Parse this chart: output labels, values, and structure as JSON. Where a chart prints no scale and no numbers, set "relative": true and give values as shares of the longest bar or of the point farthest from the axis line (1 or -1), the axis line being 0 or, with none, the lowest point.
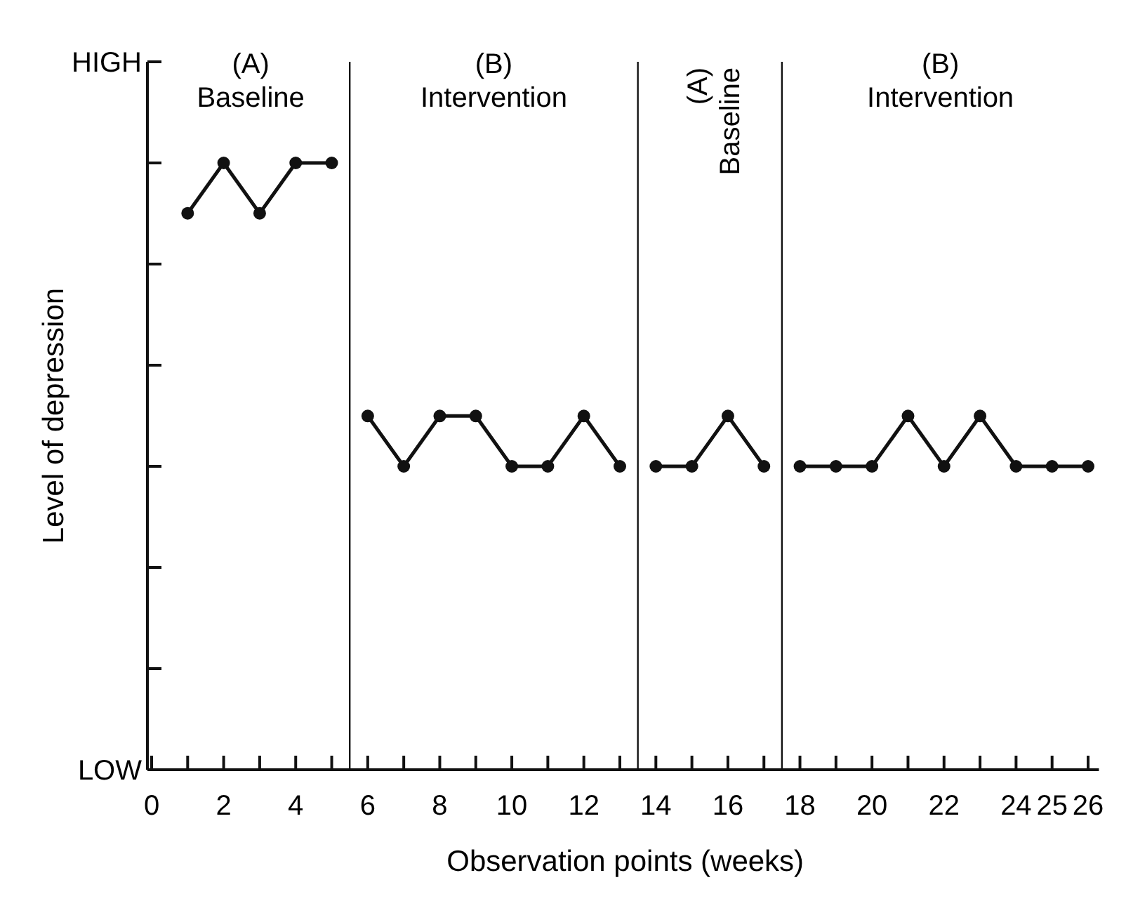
{
  "chart_data": {
    "type": "line",
    "xlabel": "Observation points (weeks)",
    "ylabel": "Level of depression",
    "relative": true,
    "xlim": [
      0,
      26.3
    ],
    "xticks": [
      0,
      {
        "value": 1,
        "label": null
      },
      2,
      {
        "value": 3,
        "label": null
      },
      4,
      {
        "value": 5,
        "label": null
      },
      6,
      {
        "value": 7,
        "label": null
      },
      8,
      {
        "value": 9,
        "label": null
      },
      10,
      {
        "value": 11,
        "label": null
      },
      12,
      {
        "value": 13,
        "label": null
      },
      14,
      {
        "value": 15,
        "label": null
      },
      16,
      {
        "value": 17,
        "label": null
      },
      18,
      {
        "value": 19,
        "label": null
      },
      20,
      {
        "value": 21,
        "label": null
      },
      22,
      {
        "value": 23,
        "label": null
      },
      24,
      25,
      26
    ],
    "series": [
      {
        "color": "#111111",
        "x": [
          1,
          2,
          3,
          4,
          5
        ],
        "values": [
          0.917,
          1,
          0.917,
          1,
          1
        ]
      },
      {
        "color": "#111111",
        "x": [
          6,
          7,
          8,
          9,
          10,
          11,
          12,
          13
        ],
        "values": [
          0.583,
          0.5,
          0.583,
          0.583,
          0.5,
          0.5,
          0.583,
          0.5
        ]
      },
      {
        "color": "#111111",
        "x": [
          14,
          15,
          16,
          17
        ],
        "values": [
          0.5,
          0.5,
          0.583,
          0.5
        ]
      },
      {
        "color": "#111111",
        "x": [
          18,
          19,
          20,
          21,
          22,
          23,
          24,
          25,
          26
        ],
        "values": [
          0.5,
          0.5,
          0.5,
          0.583,
          0.5,
          0.583,
          0.5,
          0.5,
          0.5
        ]
      }
    ],
    "ref_lines": [
      {
        "axis": "x",
        "value": 5.5,
        "color": "#111111"
      },
      {
        "axis": "x",
        "value": 13.5,
        "color": "#111111"
      },
      {
        "axis": "x",
        "value": 17.5,
        "color": "#111111"
      }
    ],
    "annotations": [
      "(A)\nBaseline",
      "(B)\nIntervention",
      "(A)\nBaseline",
      "(B)\nIntervention",
      "HIGH",
      "LOW"
    ],
    "marker": "circle",
    "line_style": "solid",
    "grid": false
  }
}
